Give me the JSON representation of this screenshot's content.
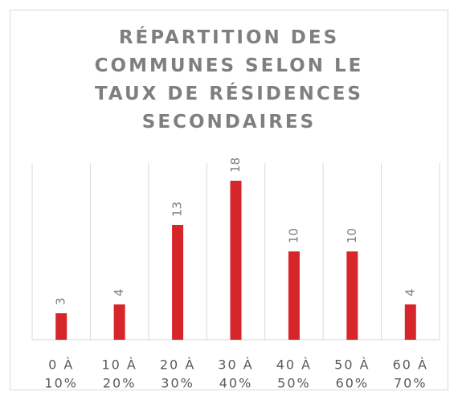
{
  "chart_data": {
    "type": "bar",
    "title": "RÉPARTITION DES\nCOMMUNES SELON LE\nTAUX DE RÉSIDENCES\nSECONDAIRES",
    "categories": [
      [
        "0 À",
        "10%"
      ],
      [
        "10 À",
        "20%"
      ],
      [
        "20 À",
        "30%"
      ],
      [
        "30 À",
        "40%"
      ],
      [
        "40 À",
        "50%"
      ],
      [
        "50 À",
        "60%"
      ],
      [
        "60 À",
        "70%"
      ]
    ],
    "values": [
      3,
      4,
      13,
      18,
      10,
      10,
      4
    ],
    "color": "#d7262b",
    "ylim": [
      0,
      20
    ]
  }
}
